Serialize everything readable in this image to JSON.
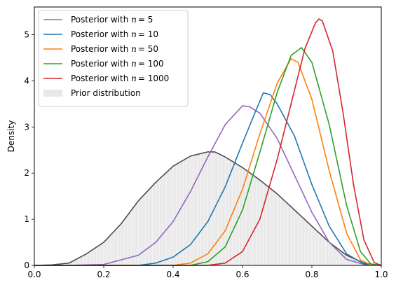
{
  "chart_data": {
    "type": "line",
    "title": "",
    "xlabel": "",
    "ylabel": "Density",
    "xlim": [
      0.0,
      1.0
    ],
    "ylim": [
      0.0,
      5.6
    ],
    "x_ticks": [
      {
        "value": 0.0,
        "label": "0.0"
      },
      {
        "value": 0.2,
        "label": "0.2"
      },
      {
        "value": 0.4,
        "label": "0.4"
      },
      {
        "value": 0.6,
        "label": "0.6"
      },
      {
        "value": 0.8,
        "label": "0.8"
      },
      {
        "value": 1.0,
        "label": "1.0"
      }
    ],
    "y_ticks": [
      {
        "value": 0,
        "label": "0"
      },
      {
        "value": 1,
        "label": "1"
      },
      {
        "value": 2,
        "label": "2"
      },
      {
        "value": 3,
        "label": "3"
      },
      {
        "value": 4,
        "label": "4"
      },
      {
        "value": 5,
        "label": "5"
      }
    ],
    "grid": false,
    "legend_position": "top-left",
    "series": [
      {
        "name": "Posterior with n = 5",
        "legend_prefix": "Posterior with ",
        "legend_var": "n",
        "legend_value": "= 5",
        "color": "#9467bd",
        "points": [
          [
            0.0,
            0
          ],
          [
            0.1,
            0
          ],
          [
            0.2,
            0.02
          ],
          [
            0.3,
            0.22
          ],
          [
            0.35,
            0.5
          ],
          [
            0.4,
            0.95
          ],
          [
            0.45,
            1.6
          ],
          [
            0.5,
            2.35
          ],
          [
            0.55,
            3.05
          ],
          [
            0.6,
            3.46
          ],
          [
            0.62,
            3.44
          ],
          [
            0.65,
            3.3
          ],
          [
            0.7,
            2.75
          ],
          [
            0.75,
            1.95
          ],
          [
            0.8,
            1.15
          ],
          [
            0.85,
            0.5
          ],
          [
            0.9,
            0.13
          ],
          [
            0.95,
            0.02
          ],
          [
            1.0,
            0
          ]
        ]
      },
      {
        "name": "Posterior with n = 10",
        "legend_prefix": "Posterior with ",
        "legend_var": "n",
        "legend_value": "= 10",
        "color": "#1f77b4",
        "points": [
          [
            0.0,
            0
          ],
          [
            0.3,
            0
          ],
          [
            0.35,
            0.05
          ],
          [
            0.4,
            0.18
          ],
          [
            0.45,
            0.45
          ],
          [
            0.5,
            0.95
          ],
          [
            0.55,
            1.7
          ],
          [
            0.6,
            2.65
          ],
          [
            0.63,
            3.2
          ],
          [
            0.66,
            3.74
          ],
          [
            0.68,
            3.7
          ],
          [
            0.7,
            3.5
          ],
          [
            0.75,
            2.8
          ],
          [
            0.8,
            1.75
          ],
          [
            0.85,
            0.85
          ],
          [
            0.9,
            0.25
          ],
          [
            0.95,
            0.03
          ],
          [
            1.0,
            0
          ]
        ]
      },
      {
        "name": "Posterior with n = 50",
        "legend_prefix": "Posterior with ",
        "legend_var": "n",
        "legend_value": "= 50",
        "color": "#ff7f0e",
        "points": [
          [
            0.0,
            0
          ],
          [
            0.4,
            0
          ],
          [
            0.45,
            0.05
          ],
          [
            0.5,
            0.25
          ],
          [
            0.55,
            0.75
          ],
          [
            0.6,
            1.65
          ],
          [
            0.65,
            2.85
          ],
          [
            0.7,
            3.95
          ],
          [
            0.74,
            4.48
          ],
          [
            0.76,
            4.4
          ],
          [
            0.8,
            3.6
          ],
          [
            0.85,
            2.05
          ],
          [
            0.9,
            0.7
          ],
          [
            0.94,
            0.12
          ],
          [
            0.97,
            0.01
          ],
          [
            1.0,
            0
          ]
        ]
      },
      {
        "name": "Posterior with n = 100",
        "legend_prefix": "Posterior with ",
        "legend_var": "n",
        "legend_value": "= 100",
        "color": "#2ca02c",
        "points": [
          [
            0.0,
            0
          ],
          [
            0.45,
            0
          ],
          [
            0.5,
            0.08
          ],
          [
            0.55,
            0.4
          ],
          [
            0.6,
            1.2
          ],
          [
            0.65,
            2.45
          ],
          [
            0.7,
            3.75
          ],
          [
            0.74,
            4.55
          ],
          [
            0.77,
            4.72
          ],
          [
            0.8,
            4.4
          ],
          [
            0.85,
            3.05
          ],
          [
            0.9,
            1.3
          ],
          [
            0.94,
            0.3
          ],
          [
            0.97,
            0.03
          ],
          [
            1.0,
            0
          ]
        ]
      },
      {
        "name": "Posterior with n = 1000",
        "legend_prefix": "Posterior with ",
        "legend_var": "n",
        "legend_value": "= 1000",
        "color": "#d62728",
        "points": [
          [
            0.0,
            0
          ],
          [
            0.5,
            0
          ],
          [
            0.55,
            0.05
          ],
          [
            0.6,
            0.3
          ],
          [
            0.65,
            1.0
          ],
          [
            0.7,
            2.3
          ],
          [
            0.75,
            3.8
          ],
          [
            0.78,
            4.7
          ],
          [
            0.81,
            5.25
          ],
          [
            0.82,
            5.34
          ],
          [
            0.83,
            5.3
          ],
          [
            0.86,
            4.65
          ],
          [
            0.89,
            3.3
          ],
          [
            0.92,
            1.75
          ],
          [
            0.95,
            0.55
          ],
          [
            0.98,
            0.06
          ],
          [
            1.0,
            0
          ]
        ]
      }
    ],
    "prior": {
      "name": "Prior distribution",
      "line_color": "#4d4d4d",
      "fill_color": "#d9d9d9",
      "points": [
        [
          0.0,
          0
        ],
        [
          0.05,
          0.01
        ],
        [
          0.1,
          0.05
        ],
        [
          0.15,
          0.25
        ],
        [
          0.2,
          0.5
        ],
        [
          0.25,
          0.9
        ],
        [
          0.3,
          1.4
        ],
        [
          0.35,
          1.8
        ],
        [
          0.4,
          2.15
        ],
        [
          0.45,
          2.37
        ],
        [
          0.5,
          2.46
        ],
        [
          0.52,
          2.46
        ],
        [
          0.55,
          2.35
        ],
        [
          0.6,
          2.12
        ],
        [
          0.65,
          1.85
        ],
        [
          0.7,
          1.55
        ],
        [
          0.75,
          1.2
        ],
        [
          0.8,
          0.85
        ],
        [
          0.85,
          0.5
        ],
        [
          0.9,
          0.22
        ],
        [
          0.95,
          0.05
        ],
        [
          1.0,
          0
        ]
      ]
    }
  }
}
